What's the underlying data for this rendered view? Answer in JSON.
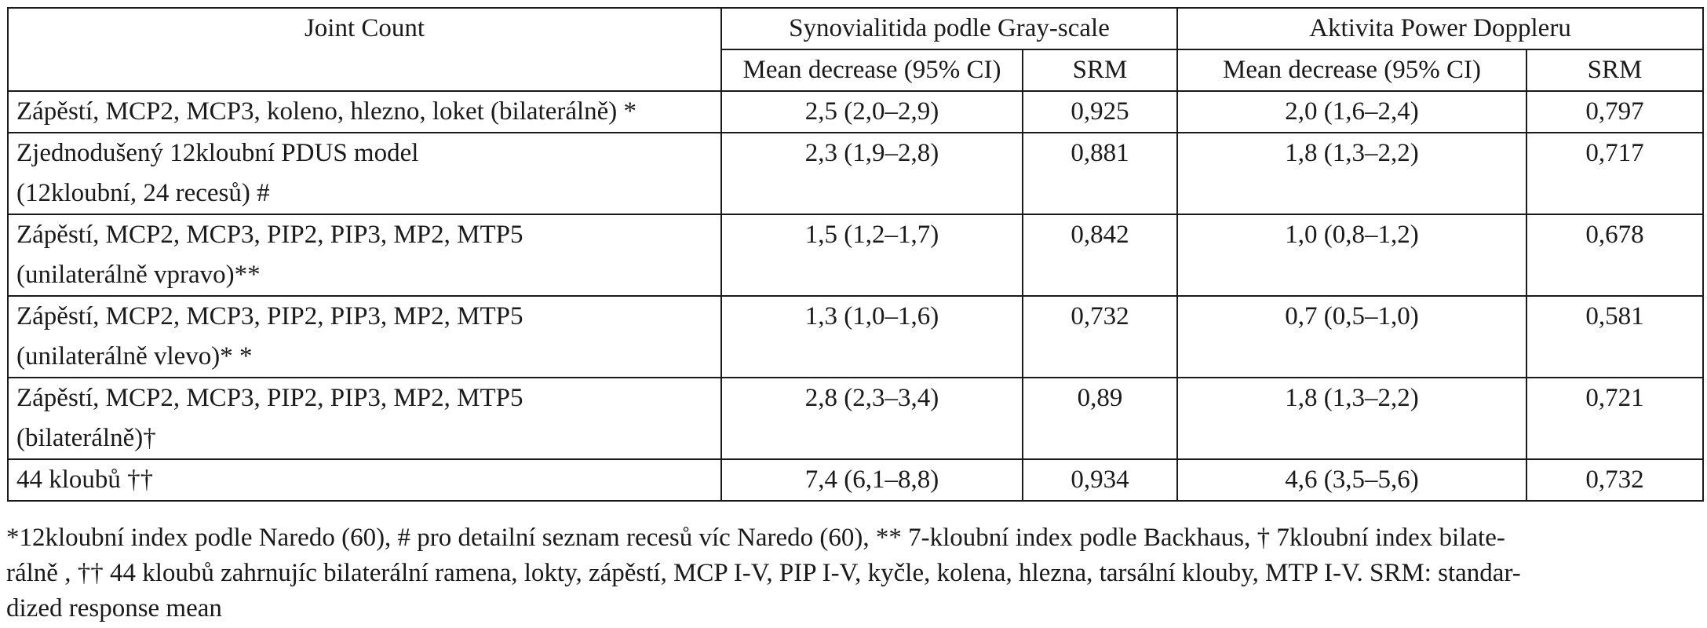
{
  "table": {
    "header": {
      "joint_count": "Joint Count",
      "group_gray": "Synovialitida podle Gray-scale",
      "group_pd": "Aktivita Power Doppleru",
      "mean_label_gray": "Mean decrease (95% CI)",
      "srm_label_gray": "SRM",
      "mean_label_pd": "Mean decrease (95% CI)",
      "srm_label_pd": "SRM"
    },
    "rows": [
      {
        "label_lines": [
          "Zápěstí, MCP2, MCP3, koleno, hlezno, loket (bilaterálně) *"
        ],
        "gs_mean": "2,5 (2,0–2,9)",
        "gs_srm": "0,925",
        "pd_mean": "2,0 (1,6–2,4)",
        "pd_srm": "0,797"
      },
      {
        "label_lines": [
          "Zjednodušený 12kloubní PDUS model",
          "(12kloubní, 24 recesů) #"
        ],
        "gs_mean": "2,3 (1,9–2,8)",
        "gs_srm": "0,881",
        "pd_mean": "1,8 (1,3–2,2)",
        "pd_srm": "0,717"
      },
      {
        "label_lines": [
          "Zápěstí, MCP2, MCP3, PIP2, PIP3, MP2, MTP5",
          "(unilaterálně vpravo)**"
        ],
        "gs_mean": "1,5 (1,2–1,7)",
        "gs_srm": "0,842",
        "pd_mean": "1,0 (0,8–1,2)",
        "pd_srm": "0,678"
      },
      {
        "label_lines": [
          "Zápěstí, MCP2, MCP3, PIP2, PIP3, MP2, MTP5",
          "(unilaterálně vlevo)* *"
        ],
        "gs_mean": "1,3 (1,0–1,6)",
        "gs_srm": "0,732",
        "pd_mean": "0,7 (0,5–1,0)",
        "pd_srm": "0,581"
      },
      {
        "label_lines": [
          "Zápěstí, MCP2, MCP3, PIP2, PIP3, MP2, MTP5",
          "(bilaterálně)†"
        ],
        "gs_mean": "2,8 (2,3–3,4)",
        "gs_srm": "0,89",
        "pd_mean": "1,8 (1,3–2,2)",
        "pd_srm": "0,721"
      },
      {
        "label_lines": [
          "44 kloubů ††"
        ],
        "gs_mean": "7,4 (6,1–8,8)",
        "gs_srm": "0,934",
        "pd_mean": "4,6 (3,5–5,6)",
        "pd_srm": "0,732"
      }
    ]
  },
  "footnote": {
    "lines": [
      "*12kloubní index podle Naredo (60), # pro detailní seznam recesů víc Naredo (60), ** 7-kloubní index podle Backhaus, † 7kloubní index bilate-",
      "rálně , †† 44 kloubů zahrnujíc bilaterální ramena, lokty, zápěstí, MCP I-V, PIP I-V, kyčle, kolena, hlezna, tarsální klouby, MTP I-V. SRM: standar-",
      "dized response mean"
    ]
  }
}
